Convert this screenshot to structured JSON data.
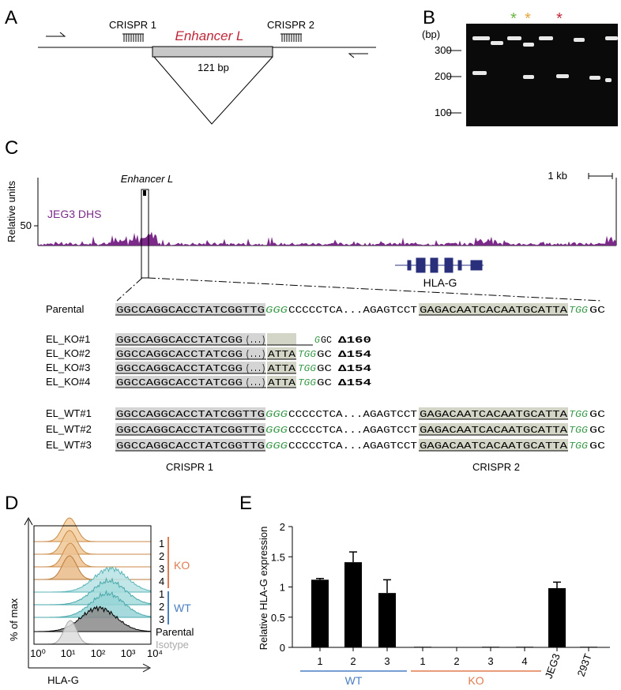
{
  "panel_a": {
    "label": "A",
    "crispr1": "CRISPR 1",
    "crispr2": "CRISPR 2",
    "enhancer": "Enhancer L",
    "deletion": "121 bp"
  },
  "panel_b": {
    "label": "B",
    "unit": "(bp)",
    "size_markers": [
      "300",
      "200",
      "100"
    ],
    "stars": [
      "*",
      "*",
      "*"
    ]
  },
  "panel_c": {
    "label": "C",
    "region": "Enhancer L",
    "scale": "1 kb",
    "y_axis": "Relative units",
    "y_tick": "50",
    "track": "JEG3 DHS",
    "gene": "HLA-G",
    "rows": [
      {
        "name": "Parental",
        "segments": [
          "GGCCAGGCACCTATCGGTTG",
          "GGG",
          "CCCCCTCA...AGAGTCCT",
          "GAGACAATCACAATGCATTA",
          "TGG",
          "GC"
        ]
      },
      {
        "name": "EL_KO#1",
        "segments": [
          "GGCCAGGCACCTATCGG",
          "(...)",
          "G",
          "GC",
          "Δ160"
        ]
      },
      {
        "name": "EL_KO#2",
        "segments": [
          "GGCCAGGCACCTATCGG",
          "(...)",
          "ATTA",
          "TGG",
          "GC",
          "Δ154"
        ]
      },
      {
        "name": "EL_KO#3",
        "segments": [
          "GGCCAGGCACCTATCGG",
          "(...)",
          "ATTA",
          "TGG",
          "GC",
          "Δ154"
        ]
      },
      {
        "name": "EL_KO#4",
        "segments": [
          "GGCCAGGCACCTATCGG",
          "(...)",
          "ATTA",
          "TGG",
          "GC",
          "Δ154"
        ]
      },
      {
        "name": "EL_WT#1",
        "segments": [
          "GGCCAGGCACCTATCGGTTG",
          "GGG",
          "CCCCCTCA...AGAGTCCT",
          "GAGACAATCACAATGCATTA",
          "TGG",
          "GC"
        ]
      },
      {
        "name": "EL_WT#2",
        "segments": [
          "GGCCAGGCACCTATCGGTTG",
          "GGG",
          "CCCCCTCA...AGAGTCCT",
          "GAGACAATCACAATGCATTA",
          "TGG",
          "GC"
        ]
      },
      {
        "name": "EL_WT#3",
        "segments": [
          "GGCCAGGCACCTATCGGTTG",
          "GGG",
          "CCCCCTCA...AGAGTCCT",
          "GAGACAATCACAATGCATTA",
          "TGG",
          "GC"
        ]
      }
    ],
    "crispr1": "CRISPR 1",
    "crispr2": "CRISPR 2"
  },
  "panel_d": {
    "label": "D",
    "y_axis": "% of max",
    "x_axis": "HLA-G",
    "x_ticks": [
      "10⁰",
      "10¹",
      "10²",
      "10³",
      "10⁴"
    ],
    "ko_lanes": [
      "1",
      "2",
      "3",
      "4"
    ],
    "ko": "KO",
    "wt_lanes": [
      "1",
      "2",
      "3"
    ],
    "wt": "WT",
    "parental": "Parental",
    "isotype": "Isotype"
  },
  "chart_data": {
    "type": "bar",
    "label": "E",
    "y_label": "Relative HLA-G expression",
    "categories": [
      "1",
      "2",
      "3",
      "1",
      "2",
      "3",
      "4",
      "JEG3",
      "293T"
    ],
    "values": [
      1.12,
      1.41,
      0.9,
      0.01,
      0,
      0.01,
      0.01,
      0.98,
      0.01
    ],
    "errors": [
      0.02,
      0.17,
      0.22,
      0,
      0,
      0,
      0,
      0.1,
      0
    ],
    "color": "#000000",
    "ylim": [
      0,
      2
    ],
    "yticks": [
      0,
      0.5,
      1,
      1.5,
      2
    ],
    "groups": [
      {
        "name": "WT",
        "color": "#4a7fc1"
      },
      {
        "name": "KO",
        "color": "#e07b4f"
      }
    ]
  }
}
